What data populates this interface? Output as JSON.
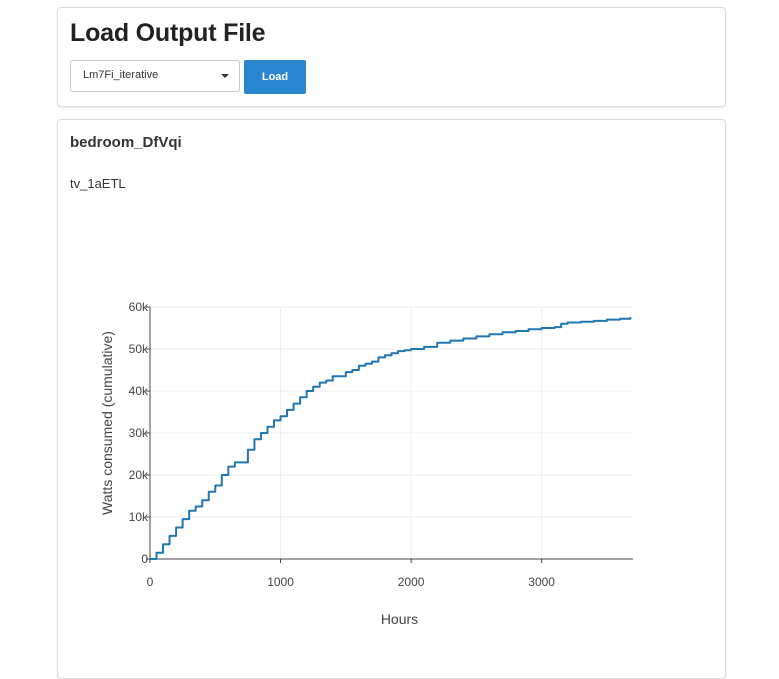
{
  "header": {
    "title": "Load Output File",
    "select_value": "Lm7Fi_iterative",
    "load_label": "Load"
  },
  "panel": {
    "room_title": "bedroom_DfVqi",
    "device_title": "tv_1aETL"
  },
  "colors": {
    "accent": "#2a86d1",
    "series_line": "#1f77b4"
  },
  "icons": {
    "select_caret": "caret-down-icon"
  },
  "chart_data": {
    "type": "line",
    "title": "",
    "xlabel": "Hours",
    "ylabel": "Watts consumed (cumulative)",
    "xlim": [
      0,
      3700
    ],
    "ylim": [
      0,
      60000
    ],
    "x_ticks": [
      0,
      1000,
      2000,
      3000
    ],
    "x_tick_labels": [
      "0",
      "1000",
      "2000",
      "3000"
    ],
    "y_ticks": [
      0,
      10000,
      20000,
      30000,
      40000,
      50000,
      60000
    ],
    "y_tick_labels": [
      "0",
      "10k",
      "20k",
      "30k",
      "40k",
      "50k",
      "60k"
    ],
    "grid": true,
    "legend": "none",
    "series": [
      {
        "x": [
          0,
          50,
          100,
          150,
          200,
          250,
          300,
          350,
          400,
          450,
          500,
          550,
          600,
          650,
          700,
          750,
          800,
          850,
          900,
          950,
          1000,
          1050,
          1100,
          1150,
          1200,
          1250,
          1300,
          1350,
          1400,
          1450,
          1500,
          1550,
          1600,
          1650,
          1700,
          1750,
          1800,
          1850,
          1900,
          1950,
          2000,
          2100,
          2200,
          2300,
          2400,
          2500,
          2600,
          2700,
          2800,
          2900,
          3000,
          3100,
          3150,
          3200,
          3300,
          3400,
          3500,
          3600,
          3680
        ],
        "values": [
          0,
          1500,
          3500,
          5500,
          7500,
          9500,
          11500,
          12500,
          14000,
          16000,
          17500,
          20000,
          22000,
          23000,
          23000,
          26000,
          28500,
          30000,
          31500,
          33000,
          34000,
          35500,
          37000,
          38500,
          40000,
          41000,
          42000,
          42500,
          43500,
          43500,
          44500,
          45000,
          46000,
          46500,
          47000,
          48000,
          48500,
          49000,
          49500,
          49700,
          50000,
          50500,
          51500,
          52000,
          52500,
          53000,
          53500,
          54000,
          54300,
          54700,
          55000,
          55200,
          56000,
          56300,
          56500,
          56700,
          57000,
          57200,
          57600
        ]
      }
    ]
  }
}
